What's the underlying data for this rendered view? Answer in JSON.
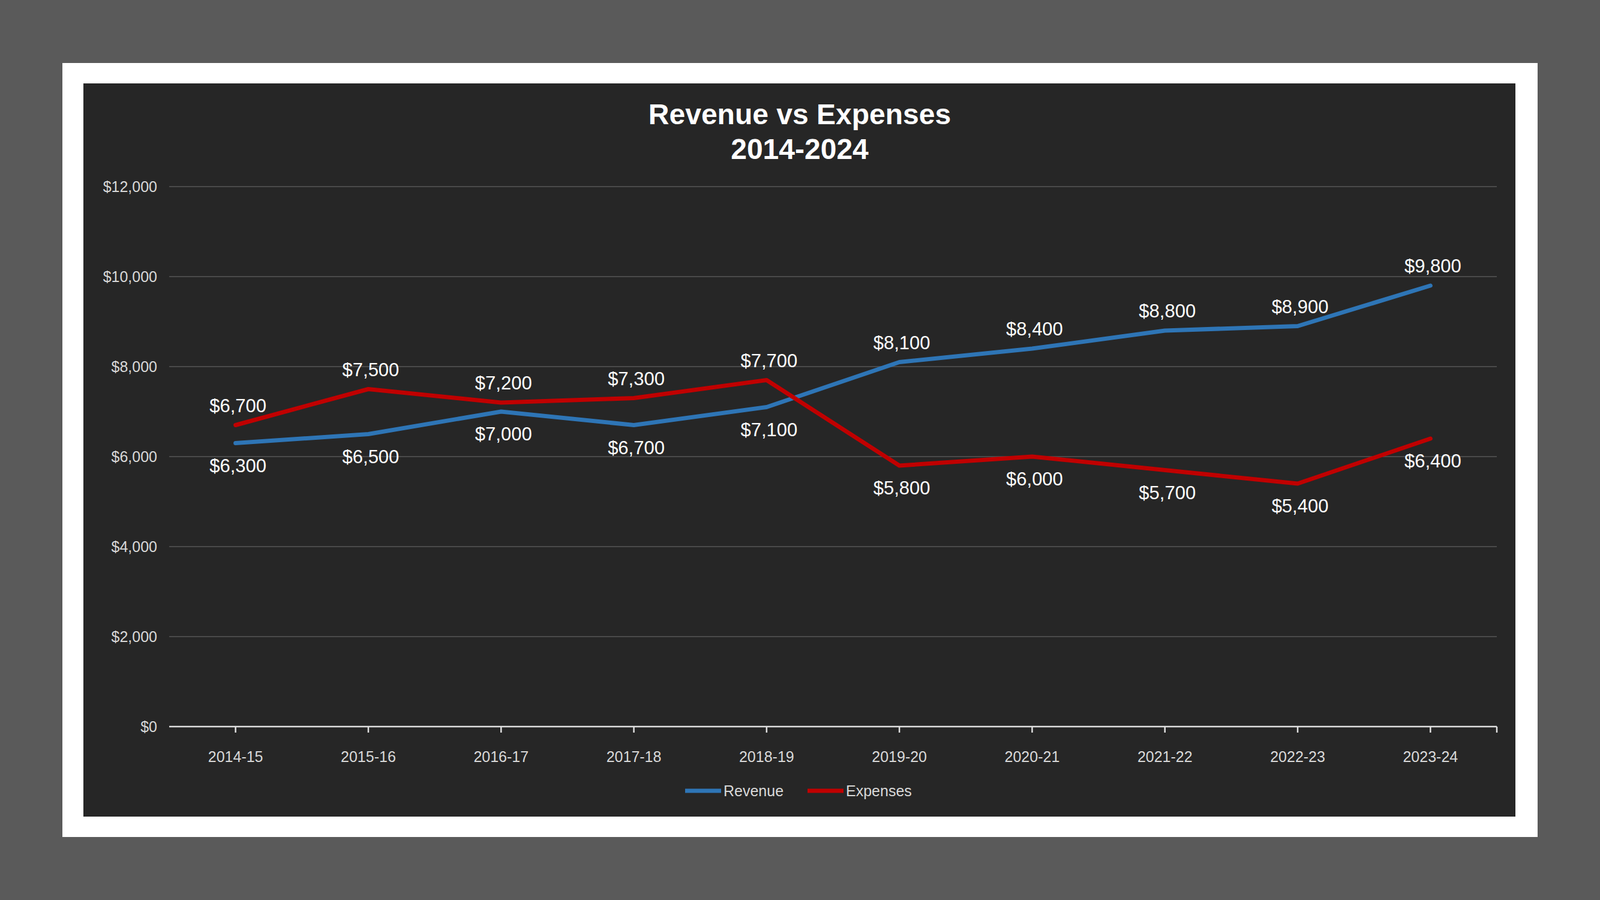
{
  "chart_data": {
    "type": "line",
    "title": "Revenue vs Expenses",
    "subtitle": "2014-2024",
    "categories": [
      "2014-15",
      "2015-16",
      "2016-17",
      "2017-18",
      "2018-19",
      "2019-20",
      "2020-21",
      "2021-22",
      "2022-23",
      "2023-24"
    ],
    "series": [
      {
        "name": "Revenue",
        "color": "#2e75b6",
        "values": [
          6300,
          6500,
          7000,
          6700,
          7100,
          8100,
          8400,
          8800,
          8900,
          9800
        ],
        "value_labels": [
          "$6,300",
          "$6,500",
          "$7,000",
          "$6,700",
          "$7,100",
          "$8,100",
          "$8,400",
          "$8,800",
          "$8,900",
          "$9,800"
        ]
      },
      {
        "name": "Expenses",
        "color": "#c00000",
        "values": [
          6700,
          7500,
          7200,
          7300,
          7700,
          5800,
          6000,
          5700,
          5400,
          6400
        ],
        "value_labels": [
          "$6,700",
          "$7,500",
          "$7,200",
          "$7,300",
          "$7,700",
          "$5,800",
          "$6,000",
          "$5,700",
          "$5,400",
          "$6,400"
        ]
      }
    ],
    "ylim": [
      0,
      12000
    ],
    "yticks": [
      {
        "value": 0,
        "label": "$0"
      },
      {
        "value": 2000,
        "label": "$2,000"
      },
      {
        "value": 4000,
        "label": "$4,000"
      },
      {
        "value": 6000,
        "label": "$6,000"
      },
      {
        "value": 8000,
        "label": "$8,000"
      },
      {
        "value": 10000,
        "label": "$10,000"
      },
      {
        "value": 12000,
        "label": "$12,000"
      }
    ],
    "grid": true,
    "data_labels": true,
    "legend": "bottom"
  }
}
